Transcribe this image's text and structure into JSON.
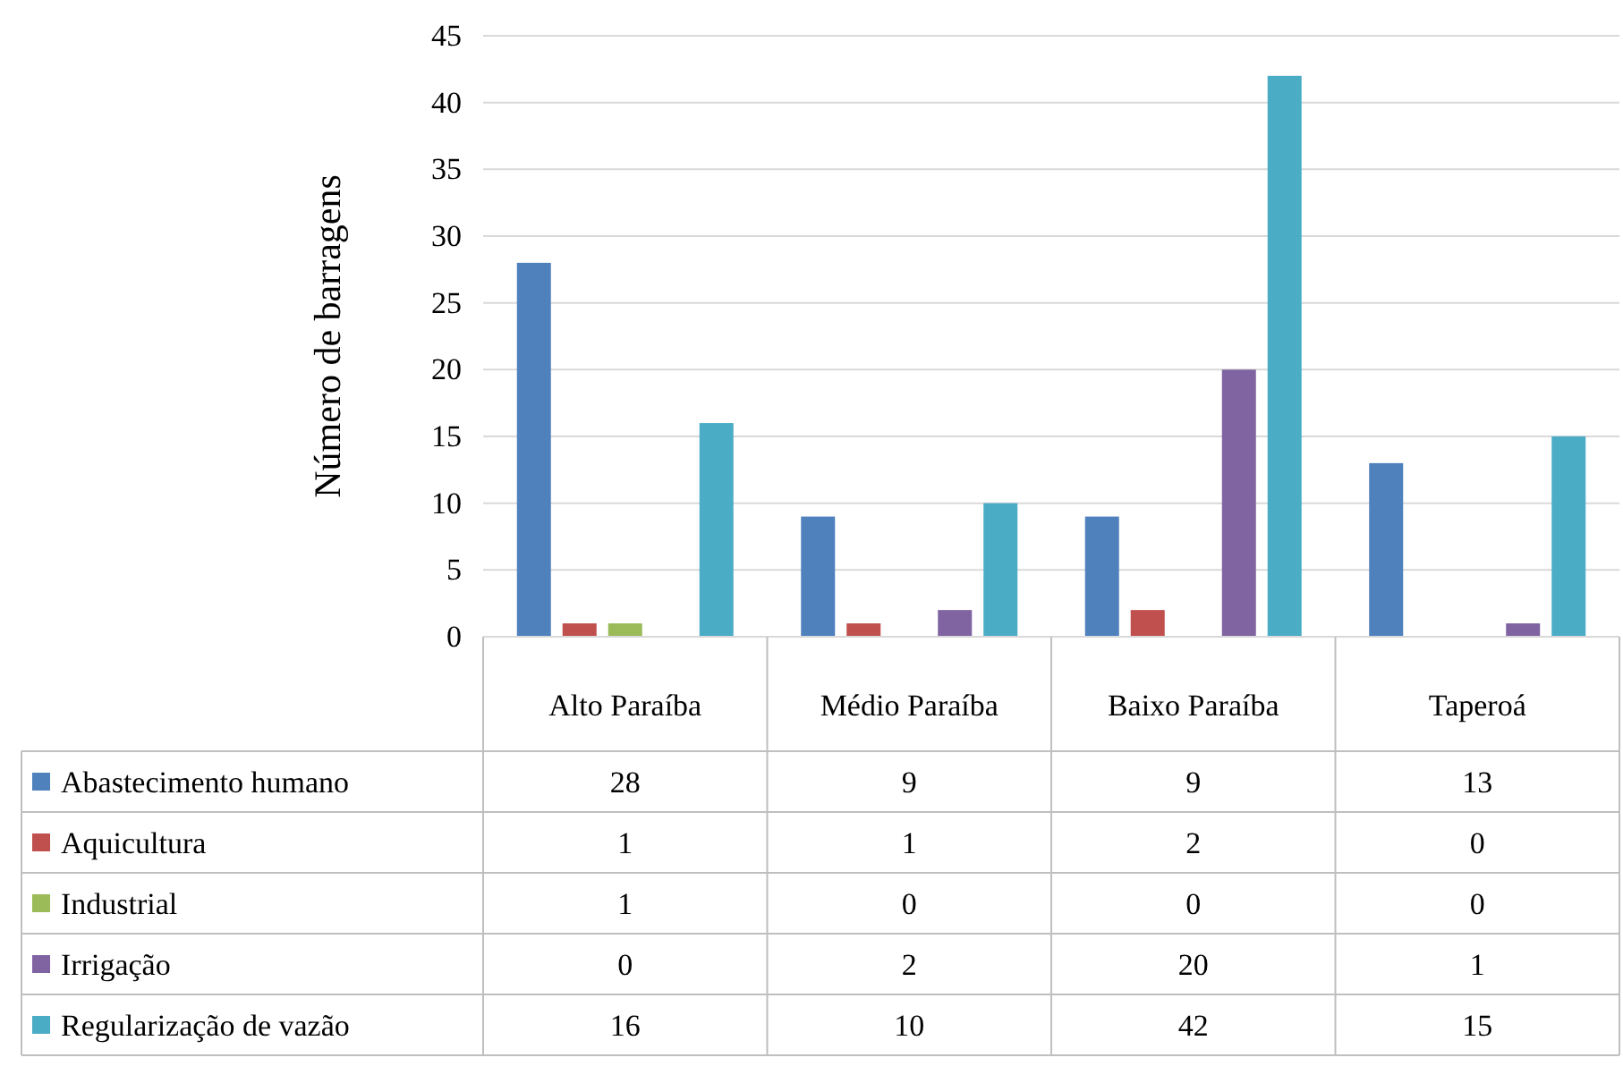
{
  "chart_data": {
    "type": "bar",
    "ylabel": "Número de barragens",
    "categories": [
      "Alto Paraíba",
      "Médio Paraíba",
      "Baixo Paraíba",
      "Taperoá"
    ],
    "series": [
      {
        "name": "Abastecimento humano",
        "color": "#4f81bd",
        "values": [
          28,
          9,
          9,
          13
        ]
      },
      {
        "name": "Aquicultura",
        "color": "#c0504d",
        "values": [
          1,
          1,
          2,
          0
        ]
      },
      {
        "name": "Industrial",
        "color": "#9bbb59",
        "values": [
          1,
          0,
          0,
          0
        ]
      },
      {
        "name": "Irrigação",
        "color": "#8064a2",
        "values": [
          0,
          2,
          20,
          1
        ]
      },
      {
        "name": "Regularização de vazão",
        "color": "#4bacc6",
        "values": [
          16,
          10,
          42,
          15
        ]
      }
    ],
    "ylim": [
      0,
      45
    ],
    "yticks": [
      0,
      5,
      10,
      15,
      20,
      25,
      30,
      35,
      40,
      45
    ],
    "grid": true,
    "legend": "left",
    "data_labels": true
  }
}
